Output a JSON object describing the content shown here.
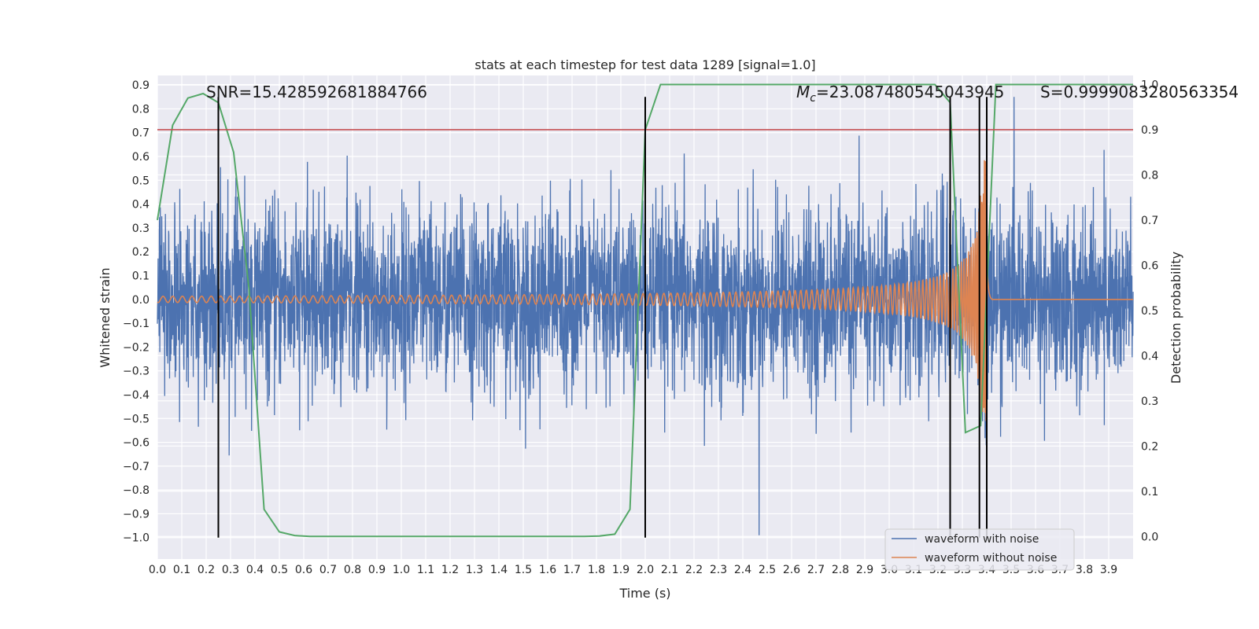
{
  "chart_data": {
    "type": "line",
    "title": "stats at each timestep for test data 1289 [signal=1.0]",
    "xlabel": "Time (s)",
    "ylabel_left": "Whitened strain",
    "ylabel_right": "Detection probability",
    "xlim": [
      0.0,
      4.0
    ],
    "ylim_left": [
      -1.09,
      0.94
    ],
    "ylim_right": [
      -0.05,
      1.02
    ],
    "x_ticks": [
      "0.0",
      "0.1",
      "0.2",
      "0.3",
      "0.4",
      "0.5",
      "0.6",
      "0.7",
      "0.8",
      "0.9",
      "1.0",
      "1.1",
      "1.2",
      "1.3",
      "1.4",
      "1.5",
      "1.6",
      "1.7",
      "1.8",
      "1.9",
      "2.0",
      "2.1",
      "2.2",
      "2.3",
      "2.4",
      "2.5",
      "2.6",
      "2.7",
      "2.8",
      "2.9",
      "3.0",
      "3.1",
      "3.2",
      "3.3",
      "3.4",
      "3.5",
      "3.6",
      "3.7",
      "3.8",
      "3.9"
    ],
    "y_left_ticks": [
      "0.9",
      "0.8",
      "0.7",
      "0.6",
      "0.5",
      "0.4",
      "0.3",
      "0.2",
      "0.1",
      "0.0",
      "−0.1",
      "−0.2",
      "−0.3",
      "−0.4",
      "−0.5",
      "−0.6",
      "−0.7",
      "−0.8",
      "−0.9",
      "−1.0"
    ],
    "y_right_ticks": [
      "1.0",
      "0.9",
      "0.8",
      "0.7",
      "0.6",
      "0.5",
      "0.4",
      "0.3",
      "0.2",
      "0.1",
      "0.0"
    ],
    "grid": true,
    "legend_position": "bottom-right",
    "annotations": {
      "snr": "SNR=15.428592681884766",
      "mc_prefix": "M",
      "mc_sub": "c",
      "mc_value": "=23.087480545043945",
      "s_value": "S=0.9999083280563354"
    },
    "threshold": {
      "axis": "right",
      "value": 0.9,
      "color": "#c44e52"
    },
    "vertical_markers": [
      0.25,
      2.0,
      3.25,
      3.37,
      3.4
    ],
    "marker_ranges": {
      "left_axis": [
        -1.0,
        0.85
      ]
    },
    "series": [
      {
        "name": "waveform with noise",
        "axis": "left",
        "color": "#4c72b0",
        "sample_count": 4000,
        "noise_std": 0.19
      },
      {
        "name": "waveform without noise",
        "axis": "left",
        "color": "#dd8452",
        "merger_time": 3.4,
        "peak_amplitude": 0.6
      },
      {
        "axis": "right",
        "color": "#55a868",
        "x": [
          0.0,
          0.0625,
          0.125,
          0.1875,
          0.25,
          0.3125,
          0.375,
          0.4375,
          0.5,
          0.5625,
          0.625,
          0.6875,
          0.75,
          1.0,
          1.25,
          1.5,
          1.75,
          1.8125,
          1.875,
          1.9375,
          2.0,
          2.0625,
          2.125,
          2.5,
          3.0,
          3.1875,
          3.25,
          3.3125,
          3.375,
          3.4375,
          3.5,
          4.0
        ],
        "values": [
          0.7,
          0.91,
          0.97,
          0.98,
          0.96,
          0.85,
          0.55,
          0.06,
          0.01,
          0.002,
          0.0,
          0.0,
          0.0,
          0.0,
          0.0,
          0.0,
          0.0,
          0.001,
          0.005,
          0.06,
          0.9,
          1.0,
          1.0,
          1.0,
          1.0,
          1.0,
          0.96,
          0.23,
          0.245,
          1.0,
          1.0,
          1.0
        ]
      }
    ]
  }
}
